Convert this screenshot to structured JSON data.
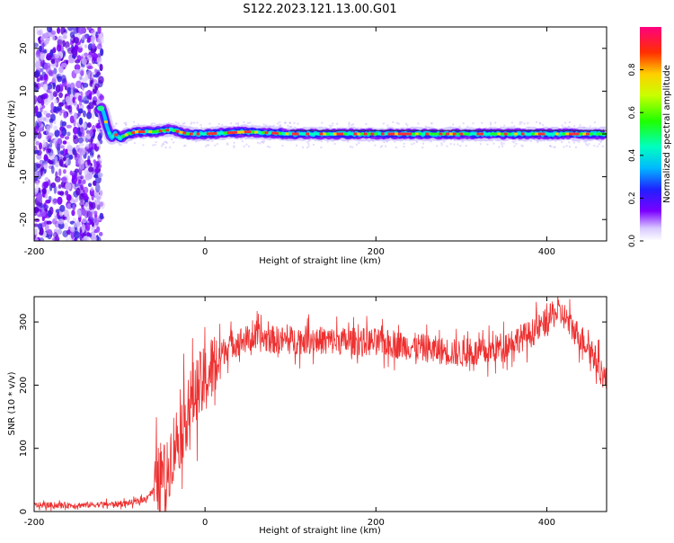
{
  "title": "S122.2023.121.13.00.G01",
  "chart_data": [
    {
      "type": "heatmap",
      "xlabel": "Height of straight line (km)",
      "ylabel": "Frequency (Hz)",
      "xlim": [
        -200,
        470
      ],
      "ylim": [
        -25,
        25
      ],
      "xticks": [
        -200,
        0,
        200,
        400
      ],
      "yticks": [
        20,
        10,
        0,
        -10,
        -20
      ],
      "colorbar": {
        "label": "Normalized spectral amplitude",
        "range": [
          0,
          1
        ],
        "ticks": [
          "0.0",
          "0.2",
          "0.4",
          "0.6",
          "0.8"
        ]
      },
      "trace": [
        {
          "x": -125,
          "y": 6
        },
        {
          "x": -120,
          "y": 6
        },
        {
          "x": -115,
          "y": 2
        },
        {
          "x": -110,
          "y": -1
        },
        {
          "x": -105,
          "y": 0
        },
        {
          "x": -100,
          "y": -1
        },
        {
          "x": -90,
          "y": 0
        },
        {
          "x": -80,
          "y": 0.5
        },
        {
          "x": -60,
          "y": 0.5
        },
        {
          "x": -40,
          "y": 1
        },
        {
          "x": -20,
          "y": 0
        },
        {
          "x": 0,
          "y": 0
        },
        {
          "x": 50,
          "y": 0.5
        },
        {
          "x": 100,
          "y": 0
        },
        {
          "x": 150,
          "y": 0
        },
        {
          "x": 200,
          "y": 0
        },
        {
          "x": 250,
          "y": 0
        },
        {
          "x": 300,
          "y": 0
        },
        {
          "x": 350,
          "y": 0
        },
        {
          "x": 400,
          "y": 0
        },
        {
          "x": 470,
          "y": 0
        }
      ]
    },
    {
      "type": "line",
      "xlabel": "Height of straight line (km)",
      "ylabel": "SNR (10 * v/v)",
      "xlim": [
        -200,
        470
      ],
      "ylim": [
        0,
        340
      ],
      "xticks": [
        -200,
        0,
        200,
        400
      ],
      "yticks": [
        0,
        100,
        200,
        300
      ],
      "series": [
        {
          "color": "#ee3030",
          "x": [
            -200,
            -150,
            -100,
            -80,
            -70,
            -60,
            -50,
            -45,
            -40,
            -35,
            -30,
            -25,
            -20,
            -15,
            -10,
            -5,
            0,
            5,
            10,
            15,
            20,
            25,
            30,
            40,
            60,
            80,
            100,
            120,
            150,
            200,
            250,
            300,
            330,
            360,
            380,
            400,
            410,
            420,
            430,
            450,
            470
          ],
          "values": [
            10,
            10,
            12,
            15,
            20,
            35,
            60,
            50,
            90,
            110,
            120,
            140,
            160,
            180,
            190,
            200,
            205,
            220,
            230,
            240,
            250,
            260,
            265,
            270,
            275,
            272,
            270,
            272,
            270,
            268,
            260,
            250,
            252,
            270,
            280,
            300,
            315,
            310,
            290,
            260,
            205
          ]
        }
      ]
    }
  ]
}
